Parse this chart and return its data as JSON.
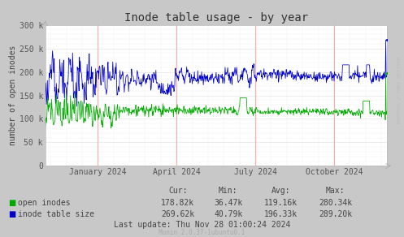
{
  "title": "Inode table usage - by year",
  "ylabel": "number of open inodes",
  "background_color": "#c8c8c8",
  "plot_bg_color": "#FFFFFF",
  "blue_color": "#0000cc",
  "green_color": "#00aa00",
  "ylim": [
    0,
    300000
  ],
  "yticks": [
    0,
    50000,
    100000,
    150000,
    200000,
    250000,
    300000
  ],
  "ytick_labels": [
    "0",
    "50 k",
    "100 k",
    "150 k",
    "200 k",
    "250 k",
    "300 k"
  ],
  "xtick_labels": [
    "January 2024",
    "April 2024",
    "July 2024",
    "October 2024"
  ],
  "legend_items": [
    {
      "label": "open inodes",
      "color": "#00aa00"
    },
    {
      "label": "inode table size",
      "color": "#0000cc"
    }
  ],
  "stats_header": [
    "Cur:",
    "Min:",
    "Avg:",
    "Max:"
  ],
  "stats": [
    {
      "name": "open inodes",
      "cur": "178.82k",
      "min": "36.47k",
      "avg": "119.16k",
      "max": "280.34k"
    },
    {
      "name": "inode table size",
      "cur": "269.62k",
      "min": "40.79k",
      "avg": "196.33k",
      "max": "289.20k"
    }
  ],
  "last_update": "Last update: Thu Nov 28 01:00:24 2024",
  "munin_version": "Munin 2.0.37-1ubuntu0.1",
  "rrdtool_label": "RRDTOOL / TOBI OETIKER",
  "title_fontsize": 10,
  "axis_fontsize": 7,
  "legend_fontsize": 7,
  "stats_fontsize": 7
}
